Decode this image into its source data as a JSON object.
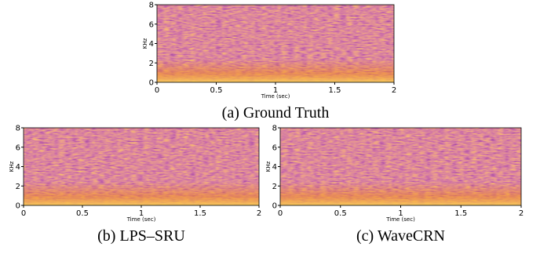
{
  "panels": [
    {
      "caption": "(a) Ground Truth",
      "xlabel": "Time (sec)",
      "ylabel": "KHz",
      "xlim": [
        0,
        2
      ],
      "ylim": [
        0,
        8
      ],
      "xticks": [
        0,
        0.5,
        1,
        1.5,
        2
      ],
      "yticks": [
        0,
        2,
        4,
        6,
        8
      ]
    },
    {
      "caption": "(b) LPS–SRU",
      "xlabel": "Time (sec)",
      "ylabel": "KHz",
      "xlim": [
        0,
        2
      ],
      "ylim": [
        0,
        8
      ],
      "xticks": [
        0,
        0.5,
        1,
        1.5,
        2
      ],
      "yticks": [
        0,
        2,
        4,
        6,
        8
      ]
    },
    {
      "caption": "(c) WaveCRN",
      "xlabel": "Time (sec)",
      "ylabel": "KHz",
      "xlim": [
        0,
        2
      ],
      "ylim": [
        0,
        8
      ],
      "xticks": [
        0,
        0.5,
        1,
        1.5,
        2
      ],
      "yticks": [
        0,
        2,
        4,
        6,
        8
      ]
    }
  ]
}
